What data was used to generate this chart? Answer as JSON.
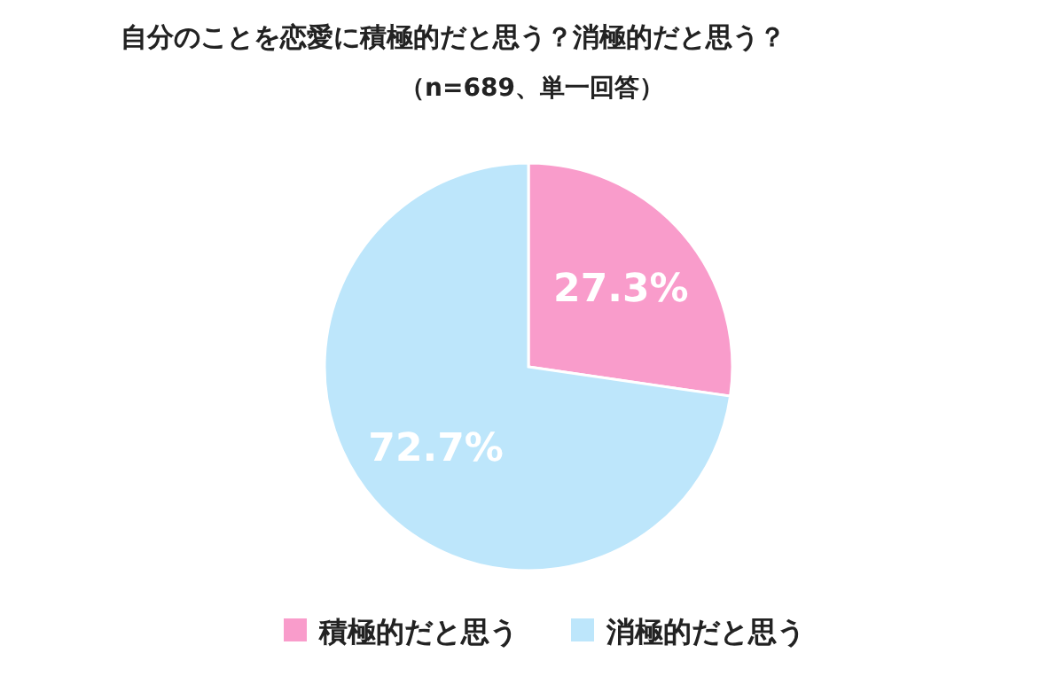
{
  "chart_data": {
    "type": "pie",
    "title": "自分のことを恋愛に積極的だと思う？消極的だと思う？",
    "subtitle": "（n=689、単一回答）",
    "categories": [
      "積極的だと思う",
      "消極的だと思う"
    ],
    "values": [
      27.3,
      72.7
    ],
    "colors": [
      "#f99ccb",
      "#bde6fb"
    ],
    "value_labels": [
      "27.3%",
      "72.7%"
    ],
    "legend": "bottom"
  }
}
